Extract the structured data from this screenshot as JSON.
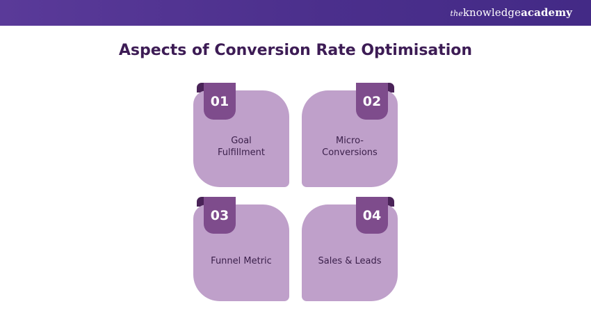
{
  "brand": {
    "the": "the",
    "name": "knowledge",
    "suffix": "academy"
  },
  "title": "Aspects of Conversion Rate Optimisation",
  "colors": {
    "header": "#4b2f8c",
    "title": "#3d1c55",
    "card": "#bfa0ca",
    "badge": "#7e4c8c",
    "tab": "#4a2358"
  },
  "cards": [
    {
      "number": "01",
      "label": "Goal Fulfillment"
    },
    {
      "number": "02",
      "label": "Micro-Conversions"
    },
    {
      "number": "03",
      "label": "Funnel Metric"
    },
    {
      "number": "04",
      "label": "Sales & Leads"
    }
  ]
}
